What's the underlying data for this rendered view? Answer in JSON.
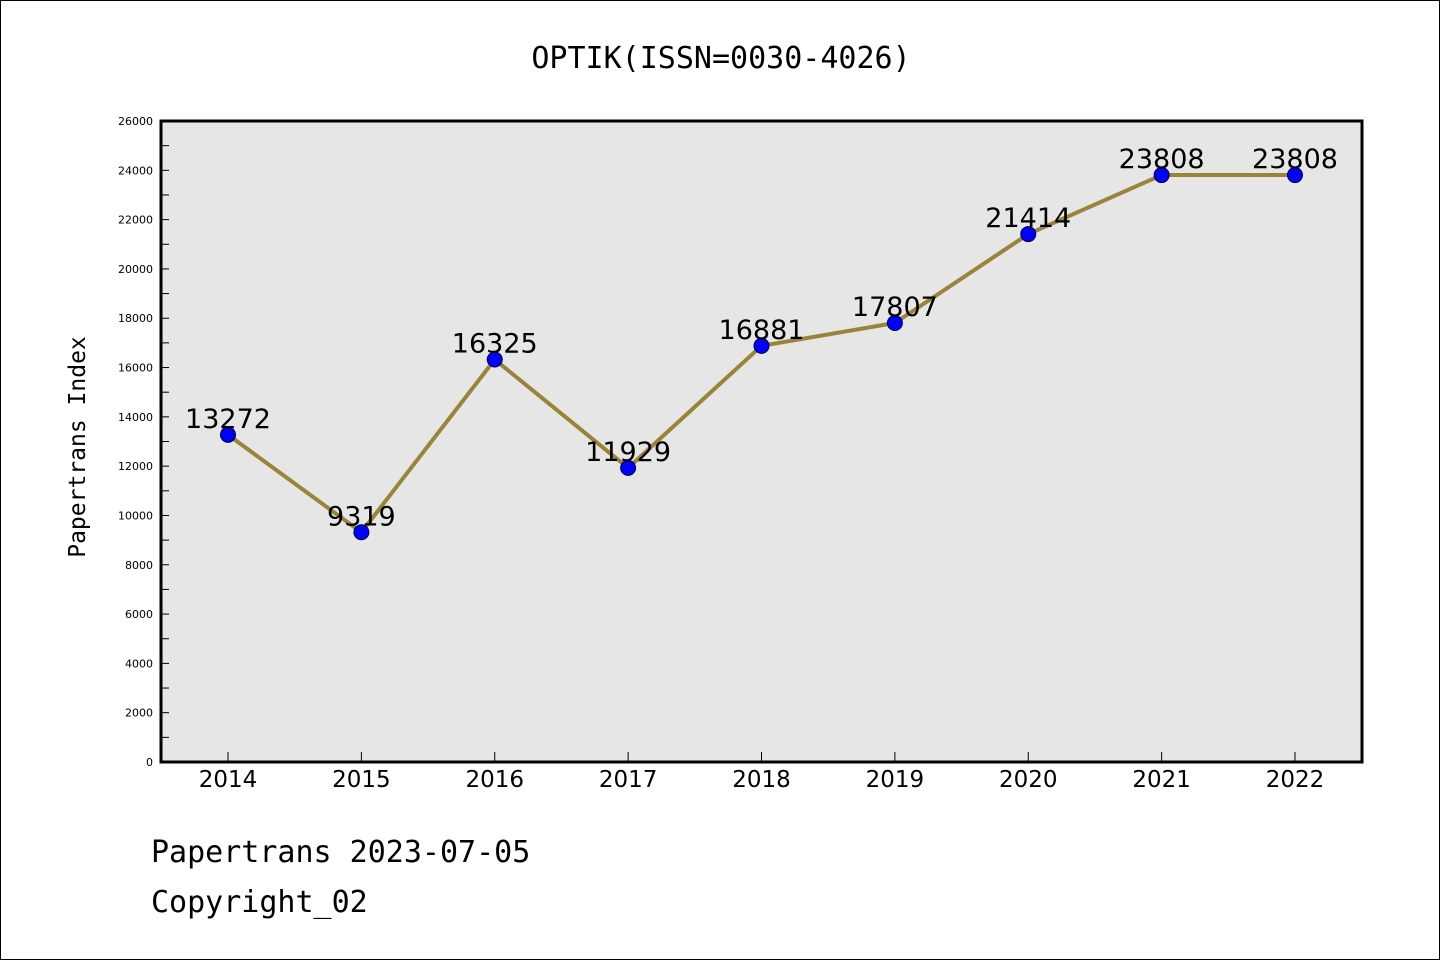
{
  "chart_data": {
    "type": "line",
    "title": "OPTIK(ISSN=0030-4026)",
    "xlabel": "",
    "ylabel": "Papertrans Index",
    "categories": [
      "2014",
      "2015",
      "2016",
      "2017",
      "2018",
      "2019",
      "2020",
      "2021",
      "2022"
    ],
    "series": [
      {
        "values": [
          13272,
          9319,
          16325,
          11929,
          16881,
          17807,
          21414,
          23808,
          23808
        ]
      }
    ],
    "data_labels": [
      "13272",
      "9319",
      "16325",
      "11929",
      "16881",
      "17807",
      "21414",
      "23808",
      "23808"
    ],
    "ylim": [
      0,
      26000
    ],
    "yticks": [
      "0",
      "2000",
      "4000",
      "6000",
      "8000",
      "10000",
      "12000",
      "14000",
      "16000",
      "18000",
      "20000",
      "22000",
      "24000",
      "26000"
    ],
    "grid": false,
    "colors": {
      "line": "#9a8439",
      "marker": "#0000ff",
      "plot_bg": "#e6e6e6"
    }
  },
  "footer": {
    "line1": "Papertrans 2023-07-05",
    "line2": "Copyright_02"
  }
}
